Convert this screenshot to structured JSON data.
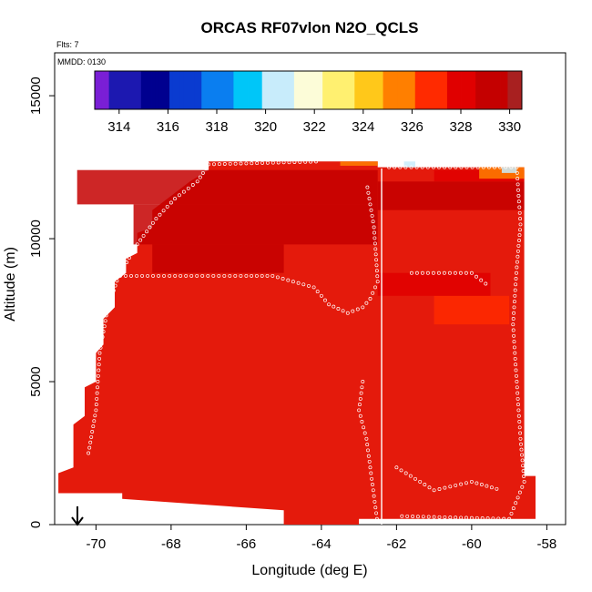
{
  "chart_data": {
    "type": "heatmap",
    "title": "ORCAS RF07vlon N2O_QCLS",
    "annotations": {
      "flts": "Flts: 7",
      "date": "MMDD: 0130"
    },
    "xlabel": "Longitude (deg E)",
    "ylabel": "Altitude (m)",
    "xlim": [
      -71.1,
      -57.5
    ],
    "ylim": [
      0,
      16500
    ],
    "xticks": [
      -70,
      -68,
      -66,
      -64,
      -62,
      -60,
      -58
    ],
    "yticks": [
      0,
      5000,
      10000,
      15000
    ],
    "colorbar": {
      "ticks": [
        314,
        316,
        318,
        320,
        322,
        324,
        326,
        328,
        330
      ],
      "range": [
        313,
        330.5
      ],
      "colors": [
        "#7a1fd6",
        "#1c18b0",
        "#00008f",
        "#0a3bd0",
        "#0a7ef0",
        "#00c6f8",
        "#c8ecfb",
        "#fcfcd8",
        "#fff070",
        "#ffc81a",
        "#ff7f00",
        "#ff2a00",
        "#e00000",
        "#c40000",
        "#a82020"
      ]
    },
    "contour_fill": {
      "base_color": "#e41a0c",
      "region": [
        [
          -71.0,
          1100
        ],
        [
          -71.0,
          1800
        ],
        [
          -70.6,
          2000
        ],
        [
          -70.6,
          3500
        ],
        [
          -70.3,
          3800
        ],
        [
          -70.3,
          4800
        ],
        [
          -70.0,
          5000
        ],
        [
          -70.0,
          6000
        ],
        [
          -69.8,
          6300
        ],
        [
          -69.8,
          7200
        ],
        [
          -69.5,
          7600
        ],
        [
          -69.5,
          8500
        ],
        [
          -69.2,
          8800
        ],
        [
          -69.2,
          9300
        ],
        [
          -68.9,
          9500
        ],
        [
          -68.9,
          10200
        ],
        [
          -68.5,
          10400
        ],
        [
          -68.5,
          11000
        ],
        [
          -68.0,
          11500
        ],
        [
          -67.5,
          12000
        ],
        [
          -67.0,
          12400
        ],
        [
          -67.0,
          12700
        ],
        [
          -62.5,
          12700
        ],
        [
          -62.5,
          12500
        ],
        [
          -58.6,
          12500
        ],
        [
          -58.6,
          1700
        ],
        [
          -58.3,
          1700
        ],
        [
          -58.3,
          200
        ],
        [
          -63.0,
          200
        ],
        [
          -63.0,
          0
        ],
        [
          -65.0,
          0
        ],
        [
          -65.0,
          500
        ],
        [
          -69.3,
          900
        ],
        [
          -69.3,
          1100
        ]
      ]
    },
    "bands": [
      {
        "lon": [
          -70.5,
          -62.5
        ],
        "alt": [
          11200,
          12400
        ],
        "value": 329.8
      },
      {
        "lon": [
          -69.0,
          -62.5
        ],
        "alt": [
          9800,
          11200
        ],
        "value": 329.4
      },
      {
        "lon": [
          -68.5,
          -65.0
        ],
        "alt": [
          8800,
          9800
        ],
        "value": 329.0
      },
      {
        "lon": [
          -62.5,
          -58.6
        ],
        "alt": [
          11000,
          12000
        ],
        "value": 329.5
      },
      {
        "lon": [
          -61.0,
          -58.6
        ],
        "alt": [
          12000,
          12400
        ],
        "value": 328.5
      },
      {
        "lon": [
          -61.0,
          -59.0
        ],
        "alt": [
          7000,
          8000
        ],
        "value": 326.5
      },
      {
        "lon": [
          -62.5,
          -59.5
        ],
        "alt": [
          8000,
          8800
        ],
        "value": 328.5
      },
      {
        "lon": [
          -59.8,
          -58.6
        ],
        "alt": [
          12100,
          12500
        ],
        "value": 325.0
      },
      {
        "lon": [
          -59.2,
          -58.8
        ],
        "alt": [
          12300,
          12500
        ],
        "value": 320.0
      },
      {
        "lon": [
          -61.8,
          -61.5
        ],
        "alt": [
          12500,
          12700
        ],
        "value": 321.0
      },
      {
        "lon": [
          -63.5,
          -62.5
        ],
        "alt": [
          12550,
          12700
        ],
        "value": 326.0
      }
    ],
    "flight_track": {
      "segments": [
        [
          [
            -70.2,
            2500
          ],
          [
            -70.0,
            4000
          ],
          [
            -69.9,
            6000
          ],
          [
            -69.7,
            7500
          ],
          [
            -69.4,
            8700
          ],
          [
            -68.9,
            9800
          ],
          [
            -68.4,
            10700
          ],
          [
            -67.9,
            11400
          ],
          [
            -67.3,
            12000
          ],
          [
            -67.0,
            12600
          ],
          [
            -64.0,
            12700
          ]
        ],
        [
          [
            -69.5,
            8700
          ],
          [
            -66.0,
            8700
          ],
          [
            -65.3,
            8700
          ],
          [
            -64.2,
            8300
          ],
          [
            -63.8,
            7700
          ],
          [
            -63.3,
            7400
          ],
          [
            -62.9,
            7600
          ],
          [
            -62.7,
            7900
          ],
          [
            -62.5,
            8500
          ],
          [
            -62.6,
            10400
          ],
          [
            -62.8,
            12000
          ]
        ],
        [
          [
            -62.9,
            5000
          ],
          [
            -63.0,
            4000
          ],
          [
            -62.8,
            3000
          ],
          [
            -62.7,
            2000
          ],
          [
            -62.6,
            1000
          ],
          [
            -62.5,
            0
          ]
        ],
        [
          [
            -62.2,
            12500
          ],
          [
            -58.8,
            12500
          ],
          [
            -58.7,
            10500
          ],
          [
            -58.8,
            9000
          ],
          [
            -58.9,
            7000
          ],
          [
            -58.8,
            5000
          ],
          [
            -58.7,
            3000
          ],
          [
            -58.6,
            1500
          ],
          [
            -59.0,
            200
          ],
          [
            -62.0,
            300
          ]
        ],
        [
          [
            -61.6,
            8800
          ],
          [
            -60.0,
            8800
          ],
          [
            -59.5,
            8300
          ]
        ],
        [
          [
            -62.0,
            2000
          ],
          [
            -61.0,
            1200
          ],
          [
            -60.0,
            1500
          ],
          [
            -59.2,
            1200
          ]
        ]
      ]
    }
  }
}
